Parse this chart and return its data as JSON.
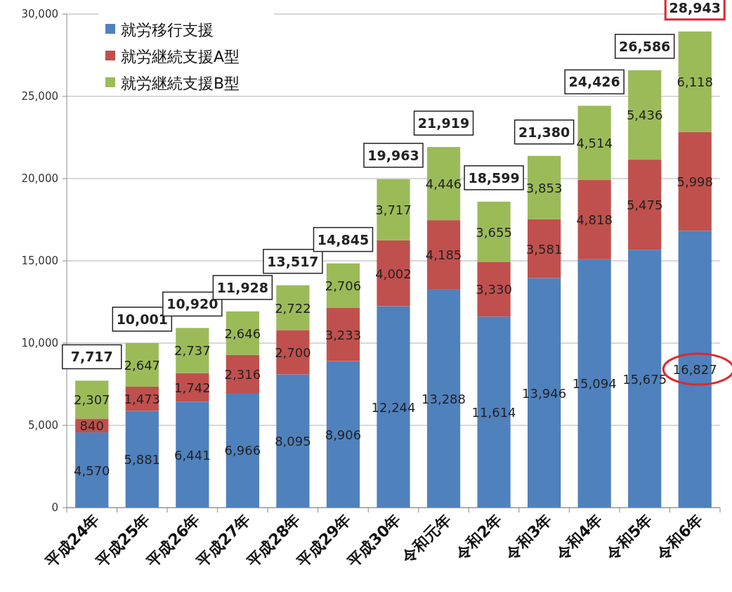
{
  "chart_data": {
    "type": "bar",
    "stacked": true,
    "categories": [
      "平成24年",
      "平成25年",
      "平成26年",
      "平成27年",
      "平成28年",
      "平成29年",
      "平成30年",
      "令和元年",
      "令和2年",
      "令和3年",
      "令和4年",
      "令和5年",
      "令和6年"
    ],
    "series": [
      {
        "name": "就労移行支援",
        "color": "#4f81bd",
        "values": [
          4570,
          5881,
          6441,
          6966,
          8095,
          8906,
          12244,
          13288,
          11614,
          13946,
          15094,
          15675,
          16827
        ],
        "value_labels": [
          "4,570",
          "5,881",
          "6,441",
          "6,966",
          "8,095",
          "8,906",
          "12,244",
          "13,288",
          "11,614",
          "13,946",
          "15,094",
          "15,675",
          "16,827"
        ]
      },
      {
        "name": "就労継続支援A型",
        "color": "#c0504d",
        "values": [
          840,
          1473,
          1742,
          2316,
          2700,
          3233,
          4002,
          4185,
          3330,
          3581,
          4818,
          5475,
          5998
        ],
        "value_labels": [
          "840",
          "1,473",
          "1,742",
          "2,316",
          "2,700",
          "3,233",
          "4,002",
          "4,185",
          "3,330",
          "3,581",
          "4,818",
          "5,475",
          "5,998"
        ]
      },
      {
        "name": "就労継続支援B型",
        "color": "#9bbb59",
        "values": [
          2307,
          2647,
          2737,
          2646,
          2722,
          2706,
          3717,
          4446,
          3655,
          3853,
          4514,
          5436,
          6118
        ],
        "value_labels": [
          "2,307",
          "2,647",
          "2,737",
          "2,646",
          "2,722",
          "2,706",
          "3,717",
          "4,446",
          "3,655",
          "3,853",
          "4,514",
          "5,436",
          "6,118"
        ]
      }
    ],
    "totals": [
      "7,717",
      "10,001",
      "10,920",
      "11,928",
      "13,517",
      "14,845",
      "19,963",
      "21,919",
      "18,599",
      "21,380",
      "24,426",
      "26,586",
      "28,943"
    ],
    "ylim": [
      0,
      30000
    ],
    "yticks": [
      {
        "value": 0,
        "label": "0"
      },
      {
        "value": 5000,
        "label": "5,000"
      },
      {
        "value": 10000,
        "label": "10,000"
      },
      {
        "value": 15000,
        "label": "15,000"
      },
      {
        "value": 20000,
        "label": "20,000"
      },
      {
        "value": 25000,
        "label": "25,000"
      },
      {
        "value": 30000,
        "label": "30,000"
      }
    ],
    "grid": "y",
    "legend": "top left"
  }
}
